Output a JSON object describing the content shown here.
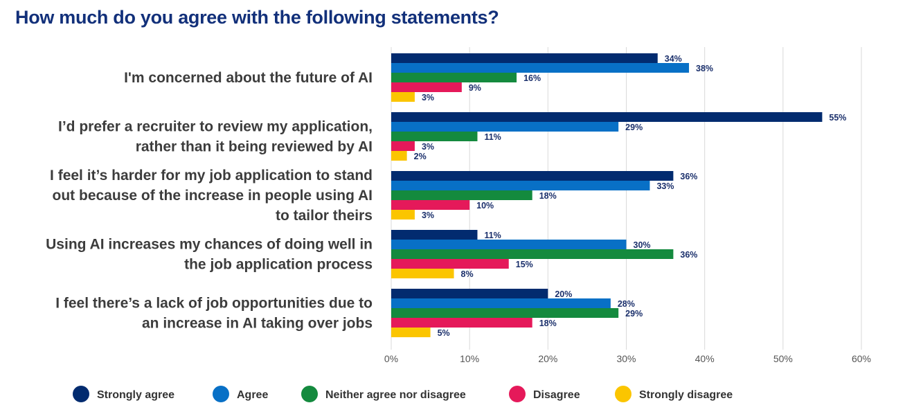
{
  "chart_data": {
    "type": "bar",
    "orientation": "horizontal",
    "title": "How much do you agree with the following statements?",
    "categories": [
      [
        "I'm concerned about the future of AI"
      ],
      [
        "I’d prefer a recruiter to review my application,",
        "rather than it being reviewed by AI"
      ],
      [
        "I feel it’s harder for my job application to stand",
        "out because of the increase in people using AI",
        "to tailor theirs"
      ],
      [
        "Using AI increases my chances of doing well in",
        "the job application process"
      ],
      [
        "I feel there’s a lack of job opportunities due to",
        "an increase in AI taking over jobs"
      ]
    ],
    "series": [
      {
        "name": "Strongly agree",
        "color": "#022b6f",
        "values": [
          34,
          55,
          36,
          11,
          20
        ]
      },
      {
        "name": "Agree",
        "color": "#0870c6",
        "values": [
          38,
          29,
          33,
          30,
          28
        ]
      },
      {
        "name": "Neither agree nor disagree",
        "color": "#148a3e",
        "values": [
          16,
          11,
          18,
          36,
          29
        ]
      },
      {
        "name": "Disagree",
        "color": "#e5195a",
        "values": [
          9,
          3,
          10,
          15,
          18
        ]
      },
      {
        "name": "Strongly disagree",
        "color": "#fbc500",
        "values": [
          3,
          2,
          3,
          8,
          5
        ]
      }
    ],
    "xlim": [
      0,
      60
    ],
    "xticks": [
      "0%",
      "10%",
      "20%",
      "30%",
      "40%",
      "50%",
      "60%"
    ],
    "value_suffix": "%",
    "grid": true,
    "legend_position": "bottom"
  }
}
